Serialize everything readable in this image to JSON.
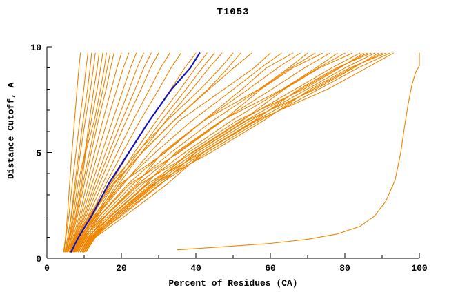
{
  "title": "T1053",
  "chart_data": {
    "type": "line",
    "title": "T1053",
    "xlabel": "Percent of Residues (CA)",
    "ylabel": "Distance Cutoff, A",
    "xlim": [
      0,
      100
    ],
    "ylim": [
      0,
      10
    ],
    "x_ticks": [
      0,
      20,
      40,
      60,
      80,
      100
    ],
    "x_minor_ticks": [
      10,
      30,
      50,
      70,
      90
    ],
    "y_ticks": [
      0,
      5,
      10
    ],
    "y_minor_ticks": [
      1,
      2,
      3,
      4,
      6,
      7,
      8,
      9
    ],
    "grid": false,
    "legend": "none",
    "colors": {
      "model": "#ee8500",
      "highlight": "#1414b4"
    },
    "y_levels": [
      0.3,
      1,
      2,
      3.5,
      5,
      6.5,
      8,
      9,
      9.7
    ],
    "series": [
      {
        "name": "curve-01",
        "color": "#ee8500",
        "xs": [
          4.5,
          5.0,
          5.5,
          6.1,
          6.7,
          7.4,
          8.1,
          8.6,
          9.0
        ]
      },
      {
        "name": "curve-02",
        "color": "#ee8500",
        "xs": [
          4.6,
          5.1,
          5.9,
          6.8,
          7.8,
          8.8,
          9.9,
          10.5,
          11.0
        ]
      },
      {
        "name": "curve-03",
        "color": "#ee8500",
        "xs": [
          4.8,
          5.6,
          6.5,
          7.5,
          8.6,
          9.7,
          10.9,
          11.6,
          12.0
        ]
      },
      {
        "name": "curve-04",
        "color": "#ee8500",
        "xs": [
          4.8,
          5.6,
          6.6,
          7.8,
          9.0,
          10.3,
          11.7,
          12.5,
          13.0
        ]
      },
      {
        "name": "curve-05",
        "color": "#ee8500",
        "xs": [
          5.0,
          5.9,
          7.0,
          8.3,
          10.2,
          11.4,
          12.6,
          13.5,
          14.0
        ]
      },
      {
        "name": "curve-06",
        "color": "#ee8500",
        "xs": [
          5.2,
          6.1,
          7.3,
          8.8,
          10.3,
          11.9,
          13.5,
          14.4,
          15.0
        ]
      },
      {
        "name": "curve-07",
        "color": "#ee8500",
        "xs": [
          5.0,
          6.2,
          7.7,
          9.3,
          10.4,
          12.7,
          14.4,
          15.4,
          16.0
        ]
      },
      {
        "name": "curve-08",
        "color": "#ee8500",
        "xs": [
          5.4,
          6.5,
          7.9,
          9.6,
          11.4,
          13.2,
          15.1,
          16.2,
          17.0
        ]
      },
      {
        "name": "curve-09",
        "color": "#ee8500",
        "xs": [
          5.5,
          6.7,
          8.2,
          10.0,
          11.9,
          13.8,
          15.9,
          17.1,
          18.0
        ]
      },
      {
        "name": "curve-10",
        "color": "#ee8500",
        "xs": [
          5.7,
          7.0,
          8.7,
          10.7,
          12.8,
          15.0,
          17.3,
          18.8,
          20.0
        ]
      },
      {
        "name": "curve-11",
        "color": "#ee8500",
        "xs": [
          6.0,
          7.3,
          9.1,
          11.4,
          13.7,
          16.2,
          18.8,
          20.5,
          22.0
        ]
      },
      {
        "name": "curve-12",
        "color": "#ee8500",
        "xs": [
          5.6,
          7.4,
          9.5,
          12.1,
          14.8,
          17.6,
          20.5,
          22.4,
          24.0
        ]
      },
      {
        "name": "curve-13",
        "color": "#ee8500",
        "xs": [
          6.0,
          7.6,
          9.9,
          12.8,
          15.8,
          18.9,
          22.1,
          24.2,
          26.0
        ]
      },
      {
        "name": "curve-14",
        "color": "#ee8500",
        "xs": [
          6.1,
          7.8,
          10.2,
          13.4,
          16.7,
          20.1,
          23.7,
          26.0,
          28.0
        ]
      },
      {
        "name": "curve-15",
        "color": "#ee8500",
        "xs": [
          6.5,
          8.1,
          10.6,
          14.1,
          17.6,
          21.3,
          25.3,
          27.8,
          30.0
        ]
      },
      {
        "name": "curve-16",
        "color": "#ee8500",
        "xs": [
          6.5,
          8.4,
          11.1,
          14.9,
          18.9,
          23.1,
          27.6,
          30.5,
          33.0
        ]
      },
      {
        "name": "curve-17",
        "color": "#ee8500",
        "xs": [
          7.0,
          8.8,
          11.7,
          15.8,
          20.3,
          25.0,
          30.1,
          33.3,
          36.0
        ]
      },
      {
        "name": "curve-18",
        "color": "#ee8500",
        "xs": [
          7.0,
          9.1,
          12.3,
          17.0,
          22.1,
          27.5,
          33.3,
          37.0,
          40.0
        ]
      },
      {
        "name": "curve-19",
        "color": "#ee8500",
        "xs": [
          7.2,
          9.3,
          12.9,
          18.0,
          23.5,
          29.4,
          35.8,
          39.9,
          43.0
        ]
      },
      {
        "name": "curve-20",
        "color": "#ee8500",
        "xs": [
          7.4,
          9.6,
          13.3,
          18.7,
          24.5,
          30.7,
          37.4,
          41.7,
          45.0
        ]
      },
      {
        "name": "curve-21",
        "color": "#ee8500",
        "xs": [
          7.6,
          9.8,
          13.7,
          19.3,
          25.4,
          31.9,
          39.0,
          43.5,
          47.0
        ]
      },
      {
        "name": "curve-22",
        "color": "#ee8500",
        "xs": [
          6.2,
          7.9,
          11.2,
          17.0,
          24.2,
          32.2,
          41.2,
          46.6,
          50.0
        ]
      },
      {
        "name": "curve-23",
        "color": "#ee8500",
        "xs": [
          6.4,
          8.2,
          11.8,
          18.0,
          25.5,
          34.0,
          43.3,
          48.6,
          52.0
        ]
      },
      {
        "name": "curve-24",
        "color": "#ee8500",
        "xs": [
          6.0,
          8.0,
          11.5,
          17.6,
          25.6,
          34.1,
          43.6,
          50.1,
          55.0
        ]
      },
      {
        "name": "curve-25",
        "color": "#ee8500",
        "xs": [
          6.5,
          8.6,
          13.4,
          20.5,
          27.7,
          35.5,
          47.6,
          55.6,
          60.0
        ]
      },
      {
        "name": "curve-26",
        "color": "#ee8500",
        "xs": [
          6.8,
          9.0,
          13.1,
          20.1,
          29.1,
          38.9,
          50.1,
          57.4,
          63.0
        ]
      },
      {
        "name": "curve-27",
        "color": "#ee8500",
        "xs": [
          7.0,
          9.3,
          12.6,
          19.5,
          31.8,
          42.0,
          52.4,
          58.9,
          66.0
        ]
      },
      {
        "name": "curve-28",
        "color": "#ee8500",
        "xs": [
          7.3,
          9.6,
          14.1,
          21.7,
          31.4,
          42.1,
          54.1,
          61.9,
          68.0
        ]
      },
      {
        "name": "curve-29",
        "color": "#ee8500",
        "xs": [
          7.5,
          9.8,
          15.6,
          24.0,
          31.0,
          42.0,
          57.0,
          64.9,
          70.0
        ]
      },
      {
        "name": "curve-30",
        "color": "#ee8500",
        "xs": [
          7.8,
          10.1,
          14.9,
          23.1,
          33.3,
          44.5,
          57.2,
          65.5,
          72.0
        ]
      },
      {
        "name": "curve-31",
        "color": "#ee8500",
        "xs": [
          8.0,
          10.3,
          14.2,
          22.2,
          35.5,
          47.2,
          57.5,
          66.0,
          74.0
        ]
      },
      {
        "name": "curve-32",
        "color": "#ee8500",
        "xs": [
          8.1,
          10.5,
          15.7,
          24.4,
          35.1,
          47.0,
          60.4,
          69.1,
          76.0
        ]
      },
      {
        "name": "curve-33",
        "color": "#ee8500",
        "xs": [
          8.4,
          10.8,
          17.3,
          26.6,
          34.6,
          46.8,
          63.3,
          72.2,
          78.0
        ]
      },
      {
        "name": "curve-34",
        "color": "#ee8500",
        "xs": [
          8.5,
          11.0,
          16.5,
          25.7,
          37.0,
          49.5,
          63.5,
          72.8,
          80.0
        ]
      },
      {
        "name": "curve-35",
        "color": "#ee8500",
        "xs": [
          8.9,
          11.3,
          15.8,
          24.9,
          39.2,
          52.4,
          63.8,
          73.2,
          82.0
        ]
      },
      {
        "name": "curve-36",
        "color": "#ee8500",
        "xs": [
          9.0,
          11.5,
          17.3,
          27.1,
          38.9,
          52.0,
          66.7,
          76.4,
          84.0
        ]
      },
      {
        "name": "curve-37",
        "color": "#ee8500",
        "xs": [
          9.1,
          11.7,
          18.9,
          29.0,
          38.0,
          51.0,
          69.0,
          78.6,
          85.0
        ]
      },
      {
        "name": "curve-38",
        "color": "#ee8500",
        "xs": [
          9.4,
          11.9,
          17.9,
          27.9,
          39.9,
          53.3,
          68.3,
          78.2,
          86.0
        ]
      },
      {
        "name": "curve-39",
        "color": "#ee8500",
        "xs": [
          9.5,
          12.0,
          17.0,
          26.8,
          41.8,
          55.6,
          67.7,
          77.7,
          87.0
        ]
      },
      {
        "name": "curve-40",
        "color": "#ee8500",
        "xs": [
          9.6,
          12.2,
          18.4,
          28.7,
          40.9,
          54.6,
          69.9,
          80.0,
          88.0
        ]
      },
      {
        "name": "curve-41",
        "color": "#ee8500",
        "xs": [
          9.9,
          12.4,
          20.0,
          30.6,
          40.0,
          53.6,
          72.2,
          82.3,
          89.0
        ]
      },
      {
        "name": "curve-42",
        "color": "#ee8500",
        "xs": [
          10.0,
          12.5,
          19.0,
          29.5,
          42.0,
          55.9,
          71.5,
          81.8,
          90.0
        ]
      },
      {
        "name": "curve-43",
        "color": "#ee8500",
        "xs": [
          10.1,
          12.7,
          18.0,
          28.4,
          44.0,
          58.1,
          70.8,
          81.2,
          91.0
        ]
      },
      {
        "name": "curve-44",
        "color": "#ee8500",
        "xs": [
          10.4,
          12.9,
          19.5,
          30.3,
          43.0,
          57.1,
          73.1,
          83.5,
          92.0
        ]
      },
      {
        "name": "curve-45",
        "color": "#ee8500",
        "xs": [
          10.5,
          13.1,
          21.0,
          32.2,
          42.0,
          56.2,
          75.4,
          85.8,
          93.0
        ]
      },
      {
        "name": "curve-outlier",
        "color": "#ee8500",
        "points": [
          [
            35,
            0.4
          ],
          [
            48,
            0.55
          ],
          [
            60,
            0.7
          ],
          [
            70,
            0.9
          ],
          [
            78,
            1.15
          ],
          [
            84,
            1.5
          ],
          [
            88,
            2.0
          ],
          [
            91,
            2.7
          ],
          [
            93.5,
            3.7
          ],
          [
            95,
            5.0
          ],
          [
            96,
            6.2
          ],
          [
            97,
            7.3
          ],
          [
            98,
            8.2
          ],
          [
            99,
            8.8
          ],
          [
            100,
            9.1
          ],
          [
            100,
            9.7
          ]
        ]
      },
      {
        "name": "curve-highlight",
        "color": "#1414b4",
        "width": 2.2,
        "xs": [
          6.5,
          8.5,
          12.0,
          16.5,
          22.0,
          27.5,
          33.5,
          38.5,
          41.0
        ]
      }
    ]
  }
}
